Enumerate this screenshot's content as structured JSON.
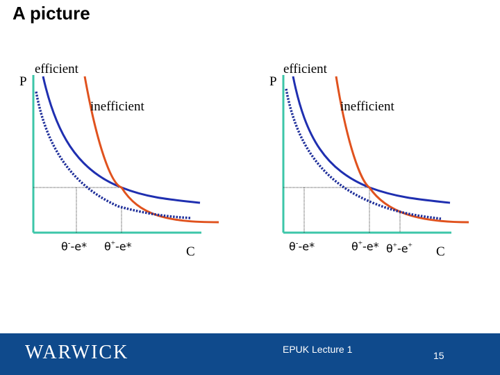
{
  "slide": {
    "title": "A picture"
  },
  "left_panel": {
    "y_axis_label": "P",
    "efficient_label": "efficient",
    "inefficient_label": "inefficient",
    "tick1": {
      "theta": "θ",
      "sup": "-",
      "rest": "-e*"
    },
    "tick2": {
      "theta": "θ",
      "sup": "+",
      "rest": "-e*"
    },
    "x_axis_label": "C"
  },
  "right_panel": {
    "y_axis_label": "P",
    "efficient_label": "efficient",
    "inefficient_label": "inefficient",
    "tick1": {
      "theta": "θ",
      "sup": "-",
      "rest": "-e*"
    },
    "tick2": {
      "theta": "θ",
      "sup": "+",
      "rest": "-e*"
    },
    "tick3": {
      "theta": "θ",
      "sup": "+",
      "rest": "-e",
      "sup2": "+"
    },
    "x_axis_label": "C"
  },
  "colors": {
    "efficient_curve": "#1f2fb0",
    "inefficient_curve": "#e0521e",
    "dotted_curve": "#1f2f9a",
    "axis": "#3cc6a8",
    "footer": "#0f4a8c"
  },
  "footer": {
    "logo": "WARWICK",
    "lecture": "EPUK Lecture 1",
    "page_number": "15"
  }
}
